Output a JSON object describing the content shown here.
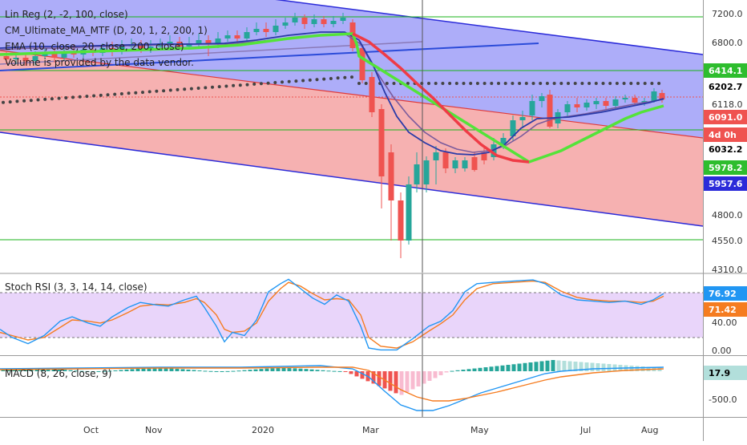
{
  "colors": {
    "up_candle": "#26a69a",
    "down_candle": "#ef5350",
    "upper_channel": "#7b7bf5",
    "lower_channel": "#f28c8c",
    "channel_line": "#2b2bd9",
    "hline": "#19b319",
    "sma_red": "#ef3b46",
    "sma_green": "#54e339",
    "ema_fast": "#2a3aa8",
    "ema_slow": "#7b5b9c",
    "stoch_k": "#2196f3",
    "stoch_d": "#f57c20",
    "stoch_band": "#d7b3f5",
    "macd_line": "#2196f3",
    "signal_line": "#f57c20"
  },
  "legend": {
    "main": [
      "Lin Reg (2, -2, 100, close)",
      "CM_Ultimate_MA_MTF (D, 20, 1, 2, 200, 1)",
      "EMA (10, close, 20, close, 200, close)",
      "Volume is provided by the data vendor."
    ],
    "stoch": "Stoch RSI (3, 3, 14, 14, close)",
    "macd": "MACD (8, 26, close, 9)"
  },
  "price_axis": {
    "ticks": [
      "7200.0",
      "6800.0",
      "6118.0",
      "4800.0",
      "4550.0",
      "4310.0"
    ],
    "badges": [
      {
        "label": "6414.1",
        "bg": "#2ebd2e",
        "fg": "#ffffff"
      },
      {
        "label": "6202.7",
        "bg": "#ffffff",
        "fg": "#000000"
      },
      {
        "label": "6091.0",
        "bg": "#ef5350",
        "fg": "#ffffff"
      },
      {
        "label": "4d 0h",
        "bg": "#ef5350",
        "fg": "#ffffff"
      },
      {
        "label": "6032.2",
        "bg": "#ffffff",
        "fg": "#000000"
      },
      {
        "label": "5978.2",
        "bg": "#2ebd2e",
        "fg": "#ffffff"
      },
      {
        "label": "5957.6",
        "bg": "#2b2bd9",
        "fg": "#ffffff"
      }
    ]
  },
  "stoch_axis": {
    "ticks": [
      "40.00",
      "0.00"
    ],
    "badges": [
      {
        "label": "76.92",
        "bg": "#2196f3",
        "fg": "#ffffff"
      },
      {
        "label": "71.42",
        "bg": "#f57c20",
        "fg": "#ffffff"
      }
    ]
  },
  "macd_axis": {
    "ticks": [
      "-500.0"
    ],
    "badges": [
      {
        "label": "17.9",
        "bg": "#b2dfdb",
        "fg": "#000000"
      }
    ]
  },
  "time_axis": [
    "Oct",
    "Nov",
    "2020",
    "Mar",
    "May",
    "Jul",
    "Aug"
  ],
  "chart_data": {
    "type": "line",
    "x": [
      "Oct",
      "Nov",
      "2020",
      "Mar",
      "May",
      "Jul",
      "Aug"
    ],
    "price_close_approx": [
      6350,
      6420,
      6950,
      6700,
      5450,
      6050,
      6180,
      6202
    ],
    "stoch_rsi_k_approx": [
      40,
      60,
      80,
      90,
      5,
      75,
      95,
      65,
      76.92
    ],
    "stoch_rsi_d_approx": [
      45,
      55,
      75,
      85,
      10,
      70,
      92,
      68,
      71.42
    ],
    "macd_hist_last": 17.9
  }
}
